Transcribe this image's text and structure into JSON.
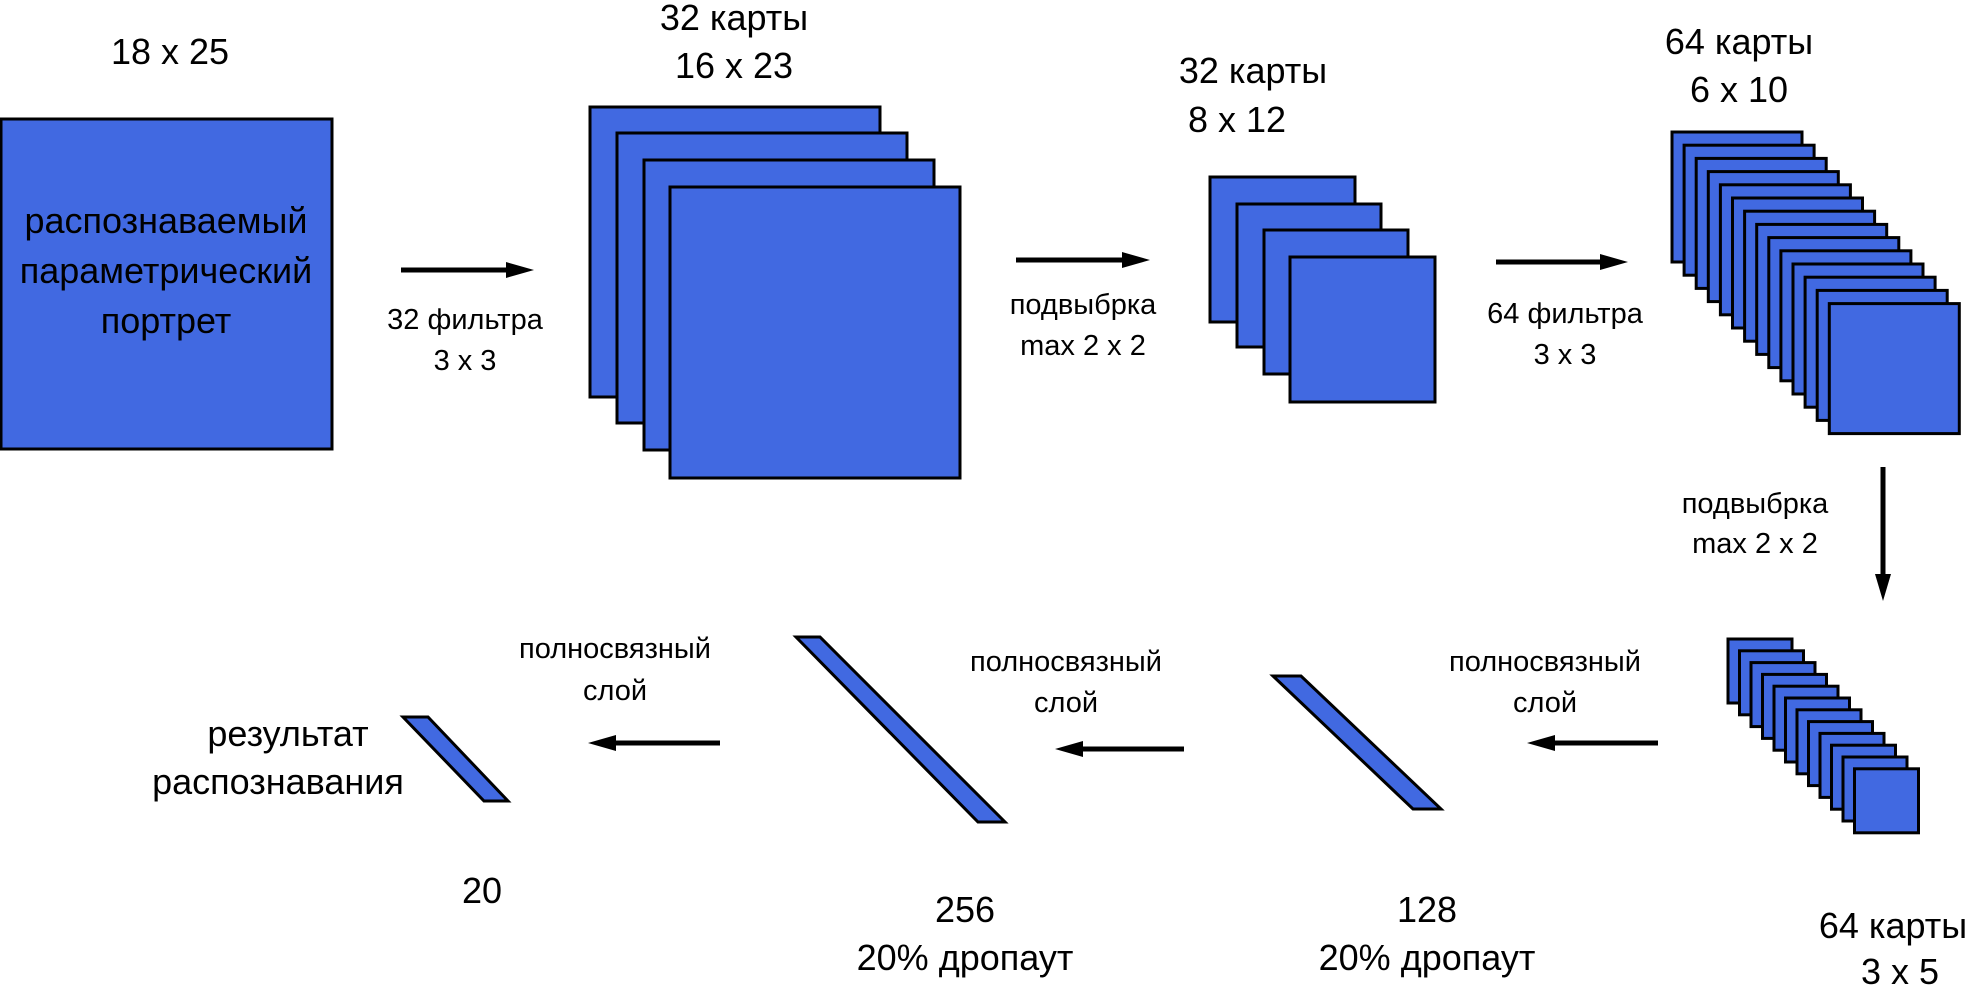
{
  "colors": {
    "map_fill": "#4169e1",
    "stroke": "#000000",
    "background": "#ffffff"
  },
  "input": {
    "size": "18 x 25",
    "text_line1": "распознаваемый",
    "text_line2": "параметрический",
    "text_line3": "портрет"
  },
  "conv1": {
    "maps_label": "32 карты",
    "size_label": "16 x 23",
    "op_line1": "32 фильтра",
    "op_line2": "3 x 3"
  },
  "pool1": {
    "maps_label": "32 карты",
    "size_label": "8 x 12",
    "op_line1": "подвыбрка",
    "op_line2": "max 2 x 2"
  },
  "conv2": {
    "maps_label": "64 карты",
    "size_label": "6 x 10",
    "op_line1": "64 фильтра",
    "op_line2": "3 x 3"
  },
  "pool2": {
    "maps_label": "64 карты",
    "size_label": "3 x 5",
    "op_line1": "подвыбрка",
    "op_line2": "max 2 x 2"
  },
  "dense1": {
    "units": "128",
    "dropout": "20% дропаут",
    "op_line1": "полносвязный",
    "op_line2": "слой"
  },
  "dense2": {
    "units": "256",
    "dropout": "20% дропаут",
    "op_line1": "полносвязный",
    "op_line2": "слой"
  },
  "output": {
    "units": "20",
    "op_line1": "полносвязный",
    "op_line2": "слой",
    "label_line1": "результат",
    "label_line2": "распознавания"
  }
}
